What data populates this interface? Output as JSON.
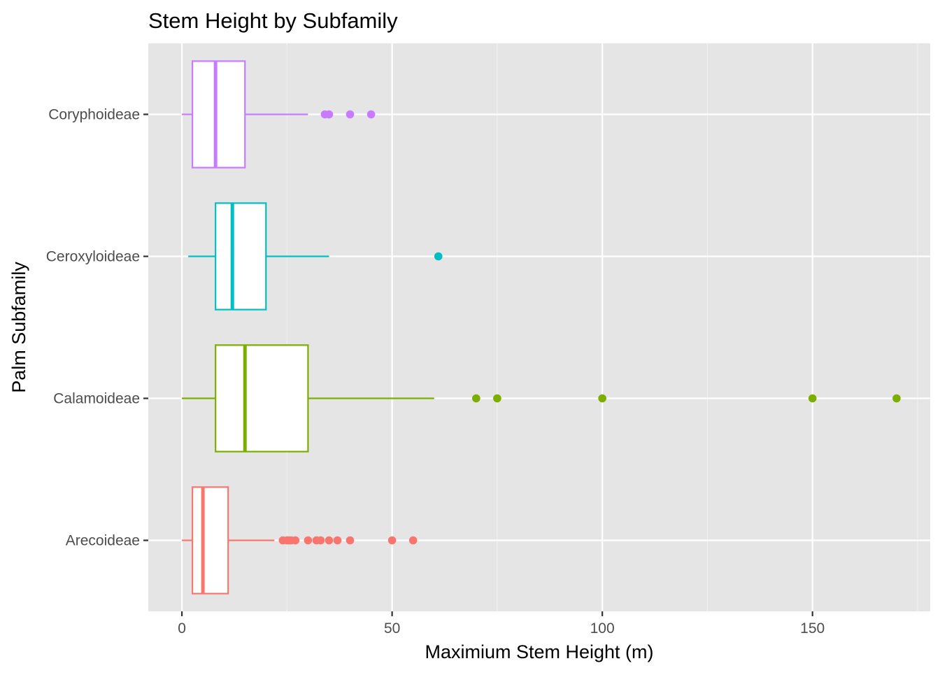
{
  "chart_data": {
    "type": "boxplot",
    "orientation": "horizontal",
    "title": "Stem Height by Subfamily",
    "xlabel": "Maximium Stem Height (m)",
    "ylabel": "Palm Subfamily",
    "xlim": [
      -8,
      178
    ],
    "x_ticks": [
      0,
      50,
      100,
      150
    ],
    "x_minor_ticks": [
      25,
      75,
      125,
      175
    ],
    "grid": true,
    "legend": "none",
    "series": [
      {
        "category": "Arecoideae",
        "color": "#F8766D",
        "min": 0,
        "q1": 2.5,
        "median": 5,
        "q3": 11,
        "max": 22,
        "outliers": [
          24,
          25,
          25.5,
          26,
          27,
          30,
          32,
          33,
          35,
          37,
          40,
          50,
          55
        ]
      },
      {
        "category": "Calamoideae",
        "color": "#7CAE00",
        "min": 0,
        "q1": 8,
        "median": 15,
        "q3": 30,
        "max": 60,
        "outliers": [
          70,
          75,
          100,
          150,
          170
        ]
      },
      {
        "category": "Ceroxyloideae",
        "color": "#00BFC4",
        "min": 1.5,
        "q1": 8,
        "median": 12,
        "q3": 20,
        "max": 35,
        "outliers": [
          61
        ]
      },
      {
        "category": "Coryphoideae",
        "color": "#C77CFF",
        "min": 0,
        "q1": 2.5,
        "median": 8,
        "q3": 15,
        "max": 30,
        "outliers": [
          34,
          35,
          40,
          45
        ]
      }
    ]
  }
}
